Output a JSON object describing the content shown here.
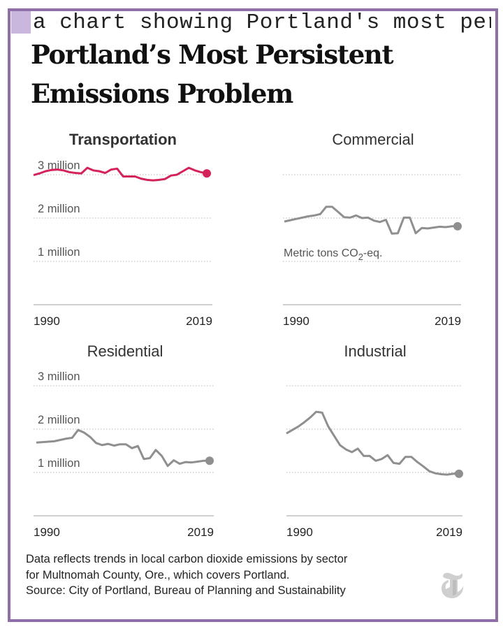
{
  "alt_text": "a chart showing Portland's most persi",
  "headline": "Portland’s Most Persistent Emissions Problem",
  "colors": {
    "highlight": "#d4225a",
    "other": "#8f8f8f",
    "grid": "#b5b5b5",
    "frame": "#8e6fa8"
  },
  "chart_data": [
    {
      "type": "line",
      "title": "Transportation",
      "highlight": true,
      "xlim": [
        1990,
        2019
      ],
      "ylim": [
        0,
        3300000
      ],
      "x_ticks": [
        "1990",
        "2019"
      ],
      "y_ticks": [
        {
          "value": 3000000,
          "label": "3 million"
        },
        {
          "value": 2000000,
          "label": "2 million"
        },
        {
          "value": 1000000,
          "label": "1 million"
        }
      ],
      "x": [
        1990,
        1991,
        1992,
        1993,
        1994,
        1995,
        1996,
        1997,
        1998,
        1999,
        2000,
        2001,
        2002,
        2003,
        2004,
        2005,
        2006,
        2007,
        2008,
        2009,
        2010,
        2011,
        2012,
        2013,
        2014,
        2015,
        2016,
        2017,
        2018,
        2019
      ],
      "values": [
        2990000,
        3030000,
        3080000,
        3110000,
        3120000,
        3100000,
        3060000,
        3040000,
        3030000,
        3160000,
        3100000,
        3080000,
        3040000,
        3120000,
        3140000,
        2960000,
        2960000,
        2960000,
        2910000,
        2880000,
        2870000,
        2880000,
        2900000,
        2980000,
        3000000,
        3080000,
        3160000,
        3100000,
        3060000,
        3030000
      ]
    },
    {
      "type": "line",
      "title": "Commercial",
      "highlight": false,
      "xlim": [
        1990,
        2019
      ],
      "ylim": [
        0,
        3300000
      ],
      "x_ticks": [
        "1990",
        "2019"
      ],
      "y_ticks": [],
      "annotation": {
        "text": "Metric tons CO",
        "sub": "2",
        "suffix": "-eq."
      },
      "x": [
        1990,
        1991,
        1992,
        1993,
        1994,
        1995,
        1996,
        1997,
        1998,
        1999,
        2000,
        2001,
        2002,
        2003,
        2004,
        2005,
        2006,
        2007,
        2008,
        2009,
        2010,
        2011,
        2012,
        2013,
        2014,
        2015,
        2016,
        2017,
        2018,
        2019
      ],
      "values": [
        1920000,
        1950000,
        1980000,
        2010000,
        2040000,
        2060000,
        2090000,
        2260000,
        2260000,
        2140000,
        2020000,
        2010000,
        2060000,
        2000000,
        2010000,
        1940000,
        1910000,
        1960000,
        1640000,
        1650000,
        2010000,
        2010000,
        1650000,
        1770000,
        1760000,
        1780000,
        1800000,
        1790000,
        1810000,
        1810000
      ]
    },
    {
      "type": "line",
      "title": "Residential",
      "highlight": false,
      "xlim": [
        1990,
        2019
      ],
      "ylim": [
        0,
        3300000
      ],
      "x_ticks": [
        "1990",
        "2019"
      ],
      "y_ticks": [
        {
          "value": 3000000,
          "label": "3 million"
        },
        {
          "value": 2000000,
          "label": "2 million"
        },
        {
          "value": 1000000,
          "label": "1 million"
        }
      ],
      "x": [
        1990,
        1991,
        1992,
        1993,
        1994,
        1995,
        1996,
        1997,
        1998,
        1999,
        2000,
        2001,
        2002,
        2003,
        2004,
        2005,
        2006,
        2007,
        2008,
        2009,
        2010,
        2011,
        2012,
        2013,
        2014,
        2015,
        2016,
        2017,
        2018,
        2019
      ],
      "values": [
        1690000,
        1700000,
        1710000,
        1720000,
        1750000,
        1780000,
        1800000,
        1980000,
        1920000,
        1820000,
        1680000,
        1630000,
        1660000,
        1620000,
        1650000,
        1650000,
        1560000,
        1610000,
        1310000,
        1330000,
        1520000,
        1380000,
        1150000,
        1280000,
        1200000,
        1240000,
        1230000,
        1250000,
        1270000,
        1270000
      ]
    },
    {
      "type": "line",
      "title": "Industrial",
      "highlight": false,
      "xlim": [
        1990,
        2019
      ],
      "ylim": [
        0,
        3300000
      ],
      "x_ticks": [
        "1990",
        "2019"
      ],
      "y_ticks": [],
      "x": [
        1990,
        1991,
        1992,
        1993,
        1994,
        1995,
        1996,
        1997,
        1998,
        1999,
        2000,
        2001,
        2002,
        2003,
        2004,
        2005,
        2006,
        2007,
        2008,
        2009,
        2010,
        2011,
        2012,
        2013,
        2014,
        2015,
        2016,
        2017,
        2018,
        2019
      ],
      "values": [
        1900000,
        1980000,
        2060000,
        2160000,
        2270000,
        2400000,
        2380000,
        2070000,
        1850000,
        1630000,
        1530000,
        1470000,
        1550000,
        1380000,
        1380000,
        1270000,
        1310000,
        1400000,
        1220000,
        1200000,
        1360000,
        1360000,
        1240000,
        1140000,
        1030000,
        980000,
        960000,
        950000,
        970000,
        970000
      ]
    }
  ],
  "notes": {
    "line1": "Data reflects trends in local carbon dioxide emissions by sector",
    "line2": "for Multnomah County, Ore., which covers Portland.",
    "line3": "Source: City of Portland, Bureau of Planning and Sustainability"
  },
  "logo_icon": "nyt-t-logo-icon"
}
